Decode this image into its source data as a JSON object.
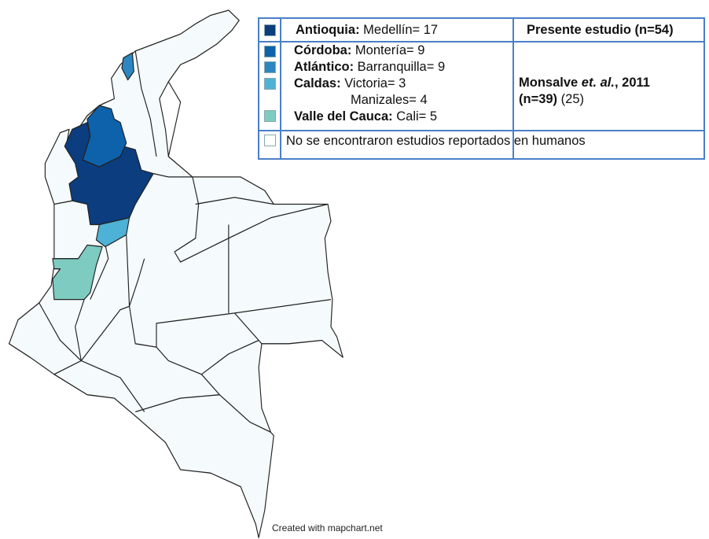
{
  "colors": {
    "antioquia": "#0b3d7f",
    "cordoba": "#0d62ab",
    "atlantico": "#2c86c2",
    "caldas": "#4eb2d6",
    "valle": "#7ecbc1",
    "none": "#f5fbfc",
    "border": "#222222",
    "legend_border": "#4a7fc8"
  },
  "legend": {
    "rows": [
      {
        "dept": "Antioquia:",
        "city": " Medellín= 17"
      },
      {
        "dept": "Córdoba:",
        "city": " Montería= 9"
      },
      {
        "dept": "Atlántico:",
        "city": " Barranquilla= 9"
      },
      {
        "dept": "Caldas:",
        "city": " Victoria= 3"
      },
      {
        "dept": "",
        "city": "Manizales= 4"
      },
      {
        "dept": "Valle del Cauca:",
        "city": " Cali= 5"
      }
    ],
    "none_label": "No se encontraron estudios reportados en humanos",
    "study1": "Presente estudio (n=54)",
    "study2_a": "Monsalve ",
    "study2_b": "et. al.",
    "study2_c": ", 2011",
    "study2_d": "(n=39)",
    "study2_e": " (25)"
  },
  "credit": "Created with mapchart.net"
}
